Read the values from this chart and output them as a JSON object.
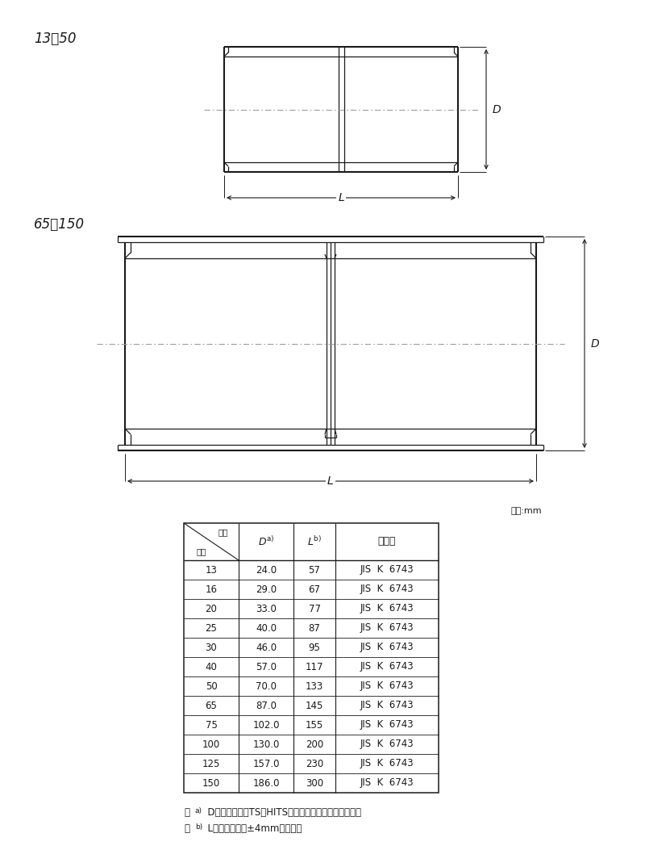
{
  "bg_color": "#ffffff",
  "line_color": "#1a1a1a",
  "label1": "13～50",
  "label2": "65～150",
  "table_unit": "単位:mm",
  "col0_top": "記号",
  "col0_bot": "呼径",
  "col_d": "D",
  "col_d_sup": "a)",
  "col_l": "L",
  "col_l_sup": "b)",
  "col_spec": "規　格",
  "table_data": [
    [
      "13",
      "24.0",
      "57",
      "JIS  K  6743"
    ],
    [
      "16",
      "29.0",
      "67",
      "JIS  K  6743"
    ],
    [
      "20",
      "33.0",
      "77",
      "JIS  K  6743"
    ],
    [
      "25",
      "40.0",
      "87",
      "JIS  K  6743"
    ],
    [
      "30",
      "46.0",
      "95",
      "JIS  K  6743"
    ],
    [
      "40",
      "57.0",
      "117",
      "JIS  K  6743"
    ],
    [
      "50",
      "70.0",
      "133",
      "JIS  K  6743"
    ],
    [
      "65",
      "87.0",
      "145",
      "JIS  K  6743"
    ],
    [
      "75",
      "102.0",
      "155",
      "JIS  K  6743"
    ],
    [
      "100",
      "130.0",
      "200",
      "JIS  K  6743"
    ],
    [
      "125",
      "157.0",
      "230",
      "JIS  K  6743"
    ],
    [
      "150",
      "186.0",
      "300",
      "JIS  K  6743"
    ]
  ],
  "note_a_pre": "注",
  "note_a_sup": "a)",
  "note_a_text": "  Dの許容差は、TS・HITS継手受口共通寸法図による。",
  "note_b_pre": "注",
  "note_b_sup": "b)",
  "note_b_text": "  Lの許容差は、±4mmとする。"
}
